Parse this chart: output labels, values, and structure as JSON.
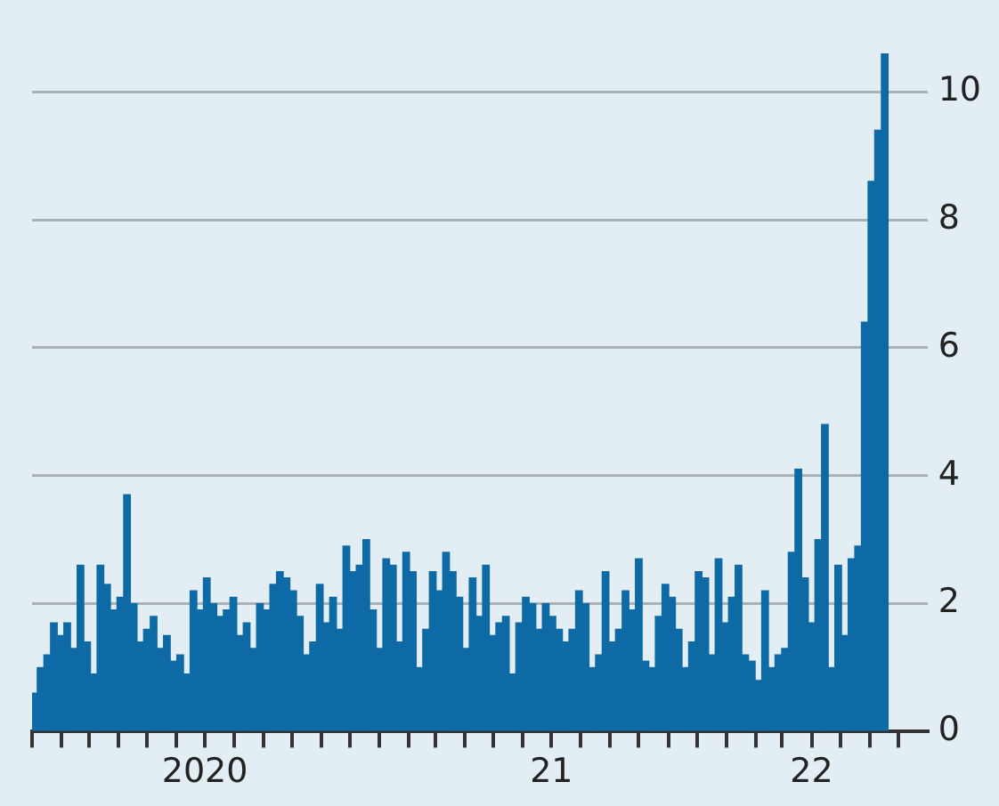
{
  "chart_data": {
    "type": "bar",
    "color": "#0e6aa5",
    "x": [
      "2020-01-03",
      "2020-01-10",
      "2020-01-17",
      "2020-01-24",
      "2020-01-31",
      "2020-02-07",
      "2020-02-14",
      "2020-02-21",
      "2020-02-28",
      "2020-03-06",
      "2020-03-13",
      "2020-03-20",
      "2020-03-27",
      "2020-04-03",
      "2020-04-10",
      "2020-04-17",
      "2020-04-24",
      "2020-05-01",
      "2020-05-08",
      "2020-05-15",
      "2020-05-22",
      "2020-05-29",
      "2020-06-05",
      "2020-06-12",
      "2020-06-19",
      "2020-06-26",
      "2020-07-03",
      "2020-07-10",
      "2020-07-17",
      "2020-07-24",
      "2020-07-31",
      "2020-08-07",
      "2020-08-14",
      "2020-08-21",
      "2020-08-28",
      "2020-09-04",
      "2020-09-11",
      "2020-09-18",
      "2020-09-25",
      "2020-10-02",
      "2020-10-09",
      "2020-10-16",
      "2020-10-23",
      "2020-10-30",
      "2020-11-06",
      "2020-11-13",
      "2020-11-20",
      "2020-11-27",
      "2020-12-04",
      "2020-12-11",
      "2020-12-18",
      "2020-12-25",
      "2021-01-01",
      "2021-01-08",
      "2021-01-15",
      "2021-01-22",
      "2021-01-29",
      "2021-02-05",
      "2021-02-12",
      "2021-02-19",
      "2021-02-26",
      "2021-03-05",
      "2021-03-12",
      "2021-03-19",
      "2021-03-26",
      "2021-04-02",
      "2021-04-09",
      "2021-04-16",
      "2021-04-23",
      "2021-04-30",
      "2021-05-07",
      "2021-05-14",
      "2021-05-21",
      "2021-05-28",
      "2021-06-04",
      "2021-06-11",
      "2021-06-18",
      "2021-06-25",
      "2021-07-02",
      "2021-07-09",
      "2021-07-16",
      "2021-07-23",
      "2021-07-30",
      "2021-08-06",
      "2021-08-13",
      "2021-08-20",
      "2021-08-27",
      "2021-09-03",
      "2021-09-10",
      "2021-09-17",
      "2021-09-24",
      "2021-10-01",
      "2021-10-08",
      "2021-10-15",
      "2021-10-22",
      "2021-10-29",
      "2021-11-05",
      "2021-11-12",
      "2021-11-19",
      "2021-11-26",
      "2021-12-03",
      "2021-12-10",
      "2021-12-17",
      "2021-12-24",
      "2021-12-31",
      "2022-01-07",
      "2022-01-14",
      "2022-01-21",
      "2022-01-28",
      "2022-02-04",
      "2022-02-11",
      "2022-02-18",
      "2022-02-25",
      "2022-03-04",
      "2022-03-11",
      "2022-03-18",
      "2022-03-25",
      "2022-04-01",
      "2022-04-08",
      "2022-04-15",
      "2022-04-22",
      "2022-04-29",
      "2022-05-06",
      "2022-05-13",
      "2022-05-20",
      "2022-05-27",
      "2022-06-03",
      "2022-06-10",
      "2022-06-17"
    ],
    "values": [
      0.6,
      1.0,
      1.2,
      1.7,
      1.5,
      1.7,
      1.3,
      2.6,
      1.4,
      0.9,
      2.6,
      2.3,
      1.9,
      2.1,
      3.7,
      2.0,
      1.4,
      1.6,
      1.8,
      1.3,
      1.5,
      1.1,
      1.2,
      0.9,
      2.2,
      1.9,
      2.4,
      2.0,
      1.8,
      1.9,
      2.1,
      1.5,
      1.7,
      1.3,
      2.0,
      1.9,
      2.3,
      2.5,
      2.4,
      2.2,
      1.8,
      1.2,
      1.4,
      2.3,
      1.7,
      2.1,
      1.6,
      2.9,
      2.5,
      2.6,
      3.0,
      1.9,
      1.3,
      2.7,
      2.6,
      1.4,
      2.8,
      2.5,
      1.0,
      1.6,
      2.5,
      2.2,
      2.8,
      2.5,
      2.1,
      1.3,
      2.4,
      1.8,
      2.6,
      1.5,
      1.7,
      1.8,
      0.9,
      1.7,
      2.1,
      2.0,
      1.6,
      2.0,
      1.8,
      1.6,
      1.4,
      1.6,
      2.2,
      2.0,
      1.0,
      1.2,
      2.5,
      1.4,
      1.6,
      2.2,
      1.9,
      2.7,
      1.1,
      1.0,
      1.8,
      2.3,
      2.1,
      1.6,
      1.0,
      1.4,
      2.5,
      2.4,
      1.2,
      2.7,
      1.7,
      2.1,
      2.6,
      1.2,
      1.1,
      0.8,
      2.2,
      1.0,
      1.2,
      1.3,
      2.8,
      4.1,
      2.4,
      1.7,
      3.0,
      4.8,
      1.0,
      2.6,
      1.5,
      2.7,
      2.9,
      6.4,
      8.6,
      9.4,
      10.6
    ],
    "xlim": [
      "2020-01-01",
      "2022-08-01"
    ],
    "xticks": [
      {
        "value": "2020-01-01",
        "label": null
      },
      {
        "value": "2020-02-01",
        "label": null
      },
      {
        "value": "2020-03-01",
        "label": null
      },
      {
        "value": "2020-04-01",
        "label": null
      },
      {
        "value": "2020-05-01",
        "label": null
      },
      {
        "value": "2020-06-01",
        "label": null
      },
      {
        "value": "2020-07-01",
        "label": "2020"
      },
      {
        "value": "2020-08-01",
        "label": null
      },
      {
        "value": "2020-09-01",
        "label": null
      },
      {
        "value": "2020-10-01",
        "label": null
      },
      {
        "value": "2020-11-01",
        "label": null
      },
      {
        "value": "2020-12-01",
        "label": null
      },
      {
        "value": "2021-01-01",
        "label": null
      },
      {
        "value": "2021-02-01",
        "label": null
      },
      {
        "value": "2021-03-01",
        "label": null
      },
      {
        "value": "2021-04-01",
        "label": null
      },
      {
        "value": "2021-05-01",
        "label": null
      },
      {
        "value": "2021-06-01",
        "label": null
      },
      {
        "value": "2021-07-01",
        "label": "21"
      },
      {
        "value": "2021-08-01",
        "label": null
      },
      {
        "value": "2021-09-01",
        "label": null
      },
      {
        "value": "2021-10-01",
        "label": null
      },
      {
        "value": "2021-11-01",
        "label": null
      },
      {
        "value": "2021-12-01",
        "label": null
      },
      {
        "value": "2022-01-01",
        "label": null
      },
      {
        "value": "2022-02-01",
        "label": null
      },
      {
        "value": "2022-03-01",
        "label": null
      },
      {
        "value": "2022-04-01",
        "label": "22"
      },
      {
        "value": "2022-05-01",
        "label": null
      },
      {
        "value": "2022-06-01",
        "label": null
      },
      {
        "value": "2022-07-01",
        "label": null
      }
    ],
    "ylim": [
      0,
      10.6
    ],
    "yticks": [
      0,
      2,
      4,
      6,
      8,
      10
    ],
    "grid": "y",
    "legend": false
  }
}
